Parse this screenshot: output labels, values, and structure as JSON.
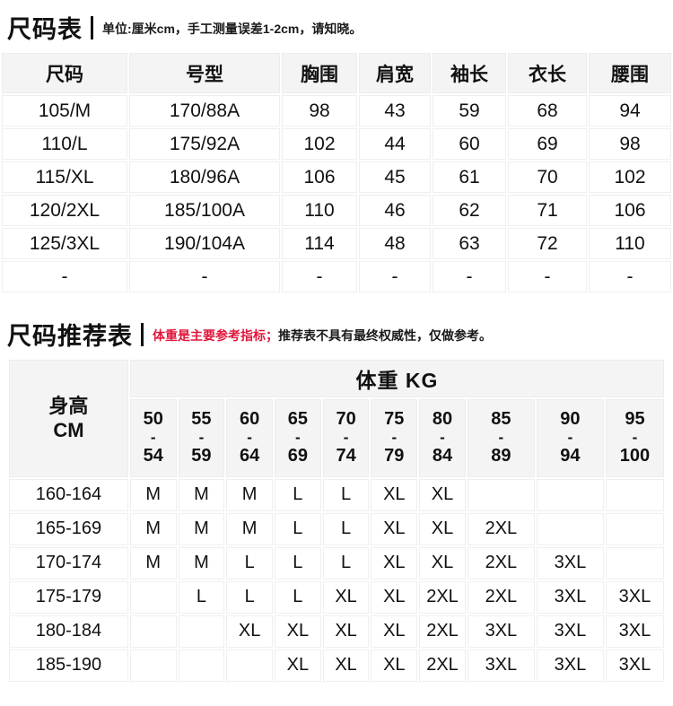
{
  "size_table": {
    "title": "尺码表",
    "subtitle": "单位:厘米cm，手工测量误差1-2cm，请知晓。",
    "headers": [
      "尺码",
      "号型",
      "胸围",
      "肩宽",
      "袖长",
      "衣长",
      "腰围"
    ],
    "rows": [
      [
        "105/M",
        "170/88A",
        "98",
        "43",
        "59",
        "68",
        "94"
      ],
      [
        "110/L",
        "175/92A",
        "102",
        "44",
        "60",
        "69",
        "98"
      ],
      [
        "115/XL",
        "180/96A",
        "106",
        "45",
        "61",
        "70",
        "102"
      ],
      [
        "120/2XL",
        "185/100A",
        "110",
        "46",
        "62",
        "71",
        "106"
      ],
      [
        "125/3XL",
        "190/104A",
        "114",
        "48",
        "63",
        "72",
        "110"
      ],
      [
        "-",
        "-",
        "-",
        "-",
        "-",
        "-",
        "-"
      ]
    ]
  },
  "recommend_table": {
    "title": "尺码推荐表",
    "subtitle_red": "体重是主要参考指标；",
    "subtitle_black": "推荐表不具有最终权威性，仅做参考。",
    "height_header_line1": "身高",
    "height_header_line2": "CM",
    "weight_header": "体重 KG",
    "range_dash": "-",
    "weight_ranges": [
      [
        "50",
        "54"
      ],
      [
        "55",
        "59"
      ],
      [
        "60",
        "64"
      ],
      [
        "65",
        "69"
      ],
      [
        "70",
        "74"
      ],
      [
        "75",
        "79"
      ],
      [
        "80",
        "84"
      ],
      [
        "85",
        "89"
      ],
      [
        "90",
        "94"
      ],
      [
        "95",
        "100"
      ]
    ],
    "rows": [
      {
        "height": "160-164",
        "sizes": [
          "M",
          "M",
          "M",
          "L",
          "L",
          "XL",
          "XL",
          "",
          "",
          ""
        ]
      },
      {
        "height": "165-169",
        "sizes": [
          "M",
          "M",
          "M",
          "L",
          "L",
          "XL",
          "XL",
          "2XL",
          "",
          ""
        ]
      },
      {
        "height": "170-174",
        "sizes": [
          "M",
          "M",
          "L",
          "L",
          "L",
          "XL",
          "XL",
          "2XL",
          "3XL",
          ""
        ]
      },
      {
        "height": "175-179",
        "sizes": [
          "",
          "L",
          "L",
          "L",
          "XL",
          "XL",
          "2XL",
          "2XL",
          "3XL",
          "3XL"
        ]
      },
      {
        "height": "180-184",
        "sizes": [
          "",
          "",
          "XL",
          "XL",
          "XL",
          "XL",
          "2XL",
          "3XL",
          "3XL",
          "3XL"
        ]
      },
      {
        "height": "185-190",
        "sizes": [
          "",
          "",
          "",
          "XL",
          "XL",
          "XL",
          "2XL",
          "3XL",
          "3XL",
          "3XL"
        ]
      }
    ]
  },
  "colors": {
    "accent_red": "#e1173c",
    "header_bg": "#f4f4f4",
    "cell_border": "#ececec",
    "text": "#111111",
    "background": "#ffffff"
  }
}
